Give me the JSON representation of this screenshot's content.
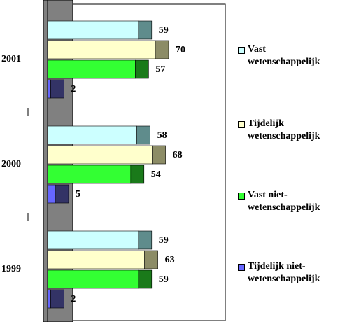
{
  "chart_data": {
    "type": "bar",
    "orientation": "horizontal",
    "stacked": false,
    "style": "3d",
    "categories": [
      "2001",
      "2000",
      "1999"
    ],
    "series": [
      {
        "name": "Vast wetenschappelijk",
        "values": [
          59,
          58,
          59
        ],
        "color": "#ccffff"
      },
      {
        "name": "Tijdelijk wetenschappelijk",
        "values": [
          70,
          68,
          63
        ],
        "color": "#ffffcc"
      },
      {
        "name": "Vast niet-wetenschappelijk",
        "values": [
          57,
          54,
          59
        ],
        "color": "#33ff33"
      },
      {
        "name": "Tijdelijk niet-wetenschappelijk",
        "values": [
          2,
          5,
          2
        ],
        "color": "#6666ff"
      }
    ],
    "legend_labels": [
      "Vast\nwetenschappelijk",
      "Tijdelijk\nwetenschappelijk",
      "Vast niet-\nwetenschappelijk",
      "Tijdelijk niet-\nwetenschappelijk"
    ],
    "legend_position": "right",
    "grid": false,
    "wall_color": "#808080",
    "title": "",
    "xlabel": "",
    "ylabel": ""
  }
}
